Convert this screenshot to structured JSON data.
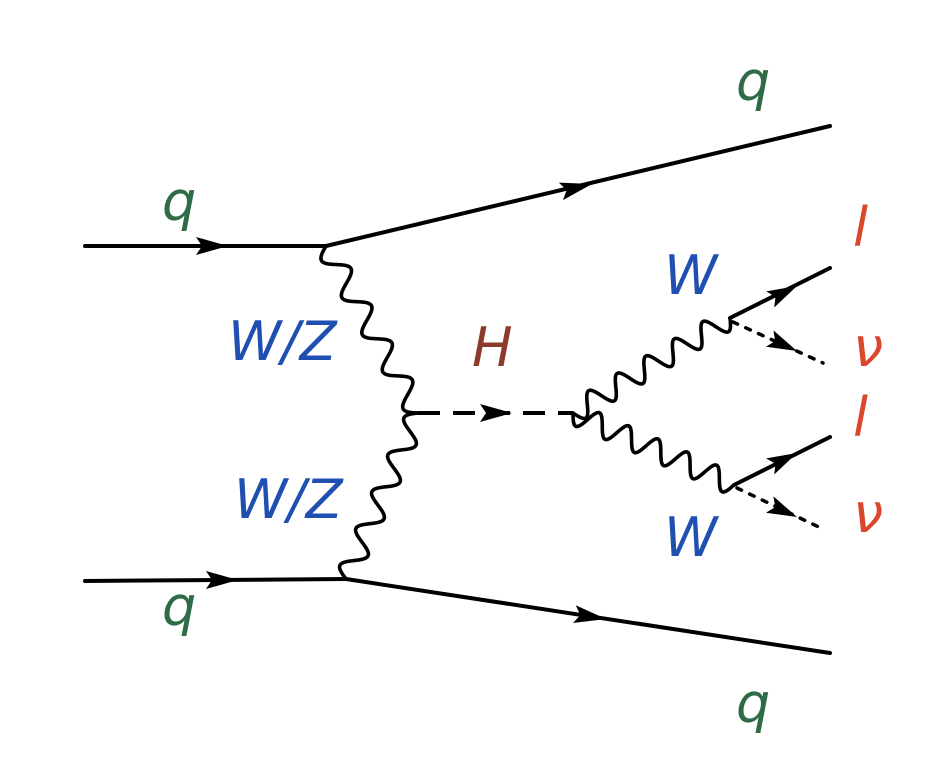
{
  "colors": {
    "quark": "#2e6b46",
    "boson": "#1f4fb0",
    "higgs": "#8b3a2b",
    "lepton": "#d9472c",
    "line": "#000000"
  },
  "labels": {
    "q_in_top": "q",
    "q_in_bottom": "q",
    "q_out_top": "q",
    "q_out_bottom": "q",
    "wz_top": "W/Z",
    "wz_bottom": "W/Z",
    "higgs": "H",
    "w_top": "W",
    "w_bottom": "W",
    "lepton_top": "l",
    "nu_top": "ν",
    "lepton_bottom": "l",
    "nu_bottom": "ν"
  }
}
